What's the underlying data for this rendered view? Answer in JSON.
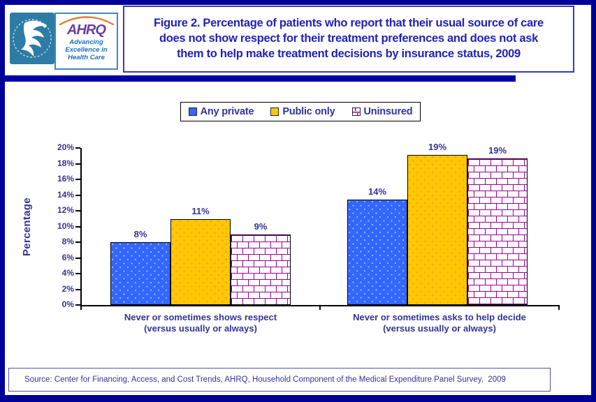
{
  "colors": {
    "frame_navy": "#000099",
    "divider_navy": "#0000A8",
    "title_text": "#2121B8",
    "text_navy": "#333399",
    "bar_blue": "#3366FF",
    "bar_blue_dot": "#8FB0FF",
    "bar_yellow": "#FFC800",
    "bar_yellow_dot": "#FF9933",
    "brick_line": "#990099",
    "hhs_blue": "#2E7BA6",
    "ahrq_purple": "#6B3FA3",
    "ahrq_tagline_blue": "#1A6FC2",
    "logo_border_blue": "#4387B8",
    "title_box_border": "#3A3AAE"
  },
  "header": {
    "ahrq_acronym": "AHRQ",
    "ahrq_tagline_lines": [
      "Advancing",
      "Excellence in",
      "Health Care"
    ],
    "title_lines": [
      "Figure 2. Percentage of patients who report that their usual source of care",
      "does not show respect for their treatment preferences and does not ask",
      "them to help make treatment decisions by insurance status, 2009"
    ]
  },
  "legend": {
    "items": [
      {
        "label": "Any private"
      },
      {
        "label": "Public only"
      },
      {
        "label": "Uninsured"
      }
    ]
  },
  "chart_data": {
    "type": "bar",
    "title": "Figure 2. Percentage of patients who report that their usual source of care does not show respect for their treatment preferences and does not ask them to help make treatment decisions by insurance status, 2009",
    "ylabel": "Percentage",
    "ylim": [
      0,
      20
    ],
    "ytick_step": 2,
    "ytick_labels": [
      "0%",
      "2%",
      "4%",
      "6%",
      "8%",
      "10%",
      "12%",
      "14%",
      "16%",
      "18%",
      "20%"
    ],
    "categories": [
      "Never or sometimes shows respect (versus usually or always)",
      "Never or sometimes asks to help decide (versus usually or always)"
    ],
    "category_label_lines": [
      [
        "Never or sometimes shows respect",
        "(versus usually or always)"
      ],
      [
        "Never or sometimes asks to help decide",
        "(versus usually or always)"
      ]
    ],
    "series": [
      {
        "name": "Any private",
        "values": [
          8,
          14
        ],
        "data_labels": [
          "8%",
          "14%"
        ]
      },
      {
        "name": "Public only",
        "values": [
          11,
          19
        ],
        "data_labels": [
          "11%",
          "19%"
        ]
      },
      {
        "name": "Uninsured",
        "values": [
          9,
          19
        ],
        "data_labels": [
          "9%",
          "19%"
        ]
      }
    ],
    "render_heights_pct": [
      [
        8.0,
        10.9,
        9.0
      ],
      [
        13.4,
        19.1,
        18.7
      ]
    ],
    "legend_position": "top",
    "grid": false
  },
  "source_note": "Source: Center for Financing, Access, and Cost Trends, AHRQ, Household Component of the Medical Expenditure Panel Survey,  2009"
}
